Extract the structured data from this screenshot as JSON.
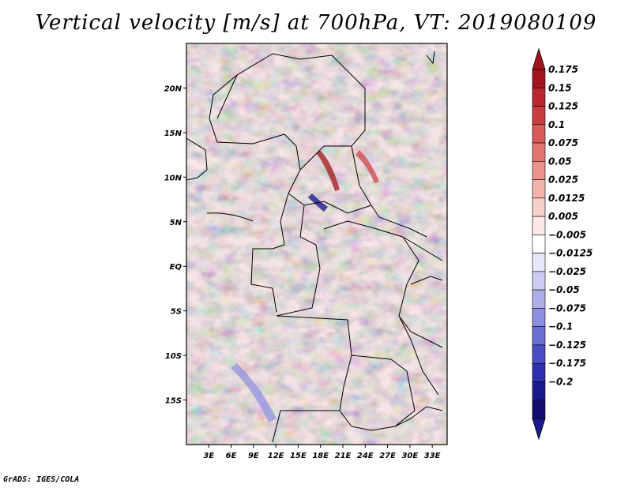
{
  "title": "Vertical velocity [m/s] at 700hPa, VT: 2019080109",
  "footer": "GrADS: IGES/COLA",
  "map": {
    "lat_labels": [
      "20N",
      "15N",
      "10N",
      "5N",
      "EQ",
      "5S",
      "10S",
      "15S"
    ],
    "lat_values": [
      20,
      15,
      10,
      5,
      0,
      -5,
      -10,
      -15
    ],
    "lon_labels": [
      "3E",
      "6E",
      "9E",
      "12E",
      "15E",
      "18E",
      "21E",
      "24E",
      "27E",
      "30E",
      "33E"
    ],
    "lon_values": [
      3,
      6,
      9,
      12,
      15,
      18,
      21,
      24,
      27,
      30,
      33
    ],
    "lat_range": [
      -20,
      25
    ],
    "lon_range": [
      0,
      35
    ]
  },
  "colorbar": {
    "labels": [
      "0.175",
      "0.15",
      "0.125",
      "0.1",
      "0.075",
      "0.05",
      "0.025",
      "0.0125",
      "0.005",
      "−0.005",
      "−0.0125",
      "−0.025",
      "−0.05",
      "−0.075",
      "−0.1",
      "−0.125",
      "−0.175",
      "−0.2"
    ],
    "colors": [
      "#a3141e",
      "#b8282e",
      "#cb3c3f",
      "#d85a58",
      "#e27570",
      "#eb938c",
      "#f3b2ab",
      "#f8cfca",
      "#fce8e5",
      "#ffffff",
      "#e7e7fb",
      "#cdcdf3",
      "#aeaeeb",
      "#8d8ee0",
      "#6b6ed3",
      "#4b4dc2",
      "#2e2fae",
      "#1c1b8e",
      "#140c70"
    ],
    "top_cap_color": "#a3141e",
    "bottom_cap_color": "#1c1b8e"
  }
}
